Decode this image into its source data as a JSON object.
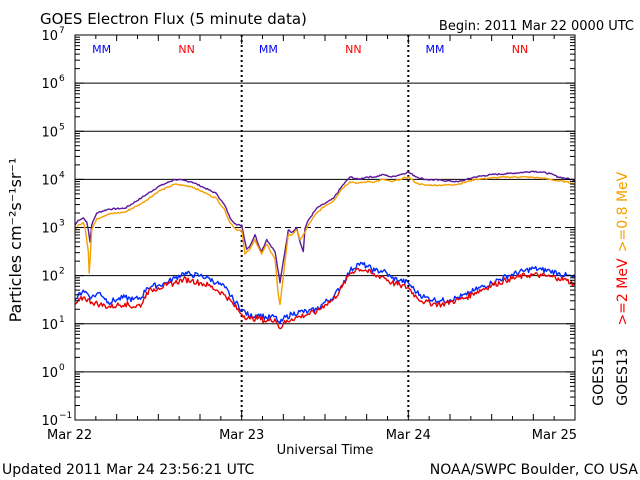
{
  "chart_data": {
    "type": "line",
    "title": "GOES Electron Flux (5 minute data)",
    "begin_text": "Begin: 2011 Mar 22 0000 UTC",
    "xlabel": "Universal Time",
    "ylabel": "Particles cm⁻²s⁻¹sr⁻¹",
    "yscale": "log",
    "ylim_exp": [
      -1,
      7
    ],
    "xlim_days": [
      0,
      3
    ],
    "x_tick_labels": [
      "Mar 22",
      "Mar 23",
      "Mar 24",
      "Mar 25"
    ],
    "y_tick_labels": [
      {
        "base": "10",
        "exp": "7"
      },
      {
        "base": "10",
        "exp": "6"
      },
      {
        "base": "10",
        "exp": "5"
      },
      {
        "base": "10",
        "exp": "4"
      },
      {
        "base": "10",
        "exp": "3"
      },
      {
        "base": "10",
        "exp": "2"
      },
      {
        "base": "10",
        "exp": "1"
      },
      {
        "base": "10",
        "exp": "0"
      },
      {
        "base": "10",
        "exp": "−1"
      }
    ],
    "dashed_levels_exp": [
      3
    ],
    "solid_grid_levels_exp": [
      0,
      1,
      2,
      4,
      5,
      6
    ],
    "noon_markers_days": [
      0.5,
      1.5,
      2.5
    ],
    "midnight_markers_days": [
      1,
      2
    ],
    "marker_glyphs": [
      "M",
      "N"
    ],
    "right_labels": {
      "ge08": ">=0.8 MeV",
      "ge2": ">=2 MeV",
      "sat_top": "GOES15",
      "sat_bottom": "GOES13"
    },
    "colors": {
      "goes15_ge08": "#5a1a9a",
      "goes13_ge08": "#f5a000",
      "goes15_ge2": "#0028ff",
      "goes13_ge2": "#e80000",
      "marker_m": "#0000ff",
      "marker_n": "#ff0000",
      "ge08_label": "#f5a000",
      "ge2_label": "#ff0000"
    },
    "series": [
      {
        "name": "GOES15 >=0.8 MeV",
        "color_key": "goes15_ge08",
        "points": [
          [
            0.0,
            3.05
          ],
          [
            0.02,
            3.15
          ],
          [
            0.05,
            3.2
          ],
          [
            0.07,
            3.12
          ],
          [
            0.08,
            2.95
          ],
          [
            0.09,
            2.7
          ],
          [
            0.1,
            3.05
          ],
          [
            0.13,
            3.3
          ],
          [
            0.2,
            3.38
          ],
          [
            0.3,
            3.4
          ],
          [
            0.4,
            3.62
          ],
          [
            0.5,
            3.85
          ],
          [
            0.6,
            4.0
          ],
          [
            0.7,
            3.95
          ],
          [
            0.78,
            3.82
          ],
          [
            0.85,
            3.7
          ],
          [
            0.9,
            3.45
          ],
          [
            0.93,
            3.2
          ],
          [
            0.97,
            3.05
          ],
          [
            1.0,
            3.05
          ],
          [
            1.03,
            2.55
          ],
          [
            1.05,
            2.62
          ],
          [
            1.08,
            2.85
          ],
          [
            1.1,
            2.65
          ],
          [
            1.12,
            2.5
          ],
          [
            1.15,
            2.75
          ],
          [
            1.2,
            2.5
          ],
          [
            1.23,
            1.85
          ],
          [
            1.25,
            2.3
          ],
          [
            1.28,
            2.95
          ],
          [
            1.3,
            2.9
          ],
          [
            1.33,
            3.0
          ],
          [
            1.35,
            2.7
          ],
          [
            1.37,
            2.5
          ],
          [
            1.38,
            2.98
          ],
          [
            1.4,
            3.15
          ],
          [
            1.45,
            3.4
          ],
          [
            1.5,
            3.5
          ],
          [
            1.55,
            3.6
          ],
          [
            1.6,
            3.85
          ],
          [
            1.65,
            4.05
          ],
          [
            1.7,
            4.0
          ],
          [
            1.75,
            4.05
          ],
          [
            1.8,
            4.05
          ],
          [
            1.85,
            4.1
          ],
          [
            1.9,
            4.05
          ],
          [
            1.95,
            4.1
          ],
          [
            2.0,
            4.15
          ],
          [
            2.05,
            4.05
          ],
          [
            2.1,
            4.0
          ],
          [
            2.2,
            3.98
          ],
          [
            2.3,
            3.95
          ],
          [
            2.35,
            4.0
          ],
          [
            2.4,
            4.05
          ],
          [
            2.5,
            4.1
          ],
          [
            2.6,
            4.12
          ],
          [
            2.7,
            4.15
          ],
          [
            2.75,
            4.17
          ],
          [
            2.8,
            4.15
          ],
          [
            2.85,
            4.12
          ],
          [
            2.9,
            4.05
          ],
          [
            2.95,
            4.02
          ],
          [
            3.0,
            3.98
          ]
        ]
      },
      {
        "name": "GOES13 >=0.8 MeV",
        "color_key": "goes13_ge08",
        "points": [
          [
            0.0,
            2.95
          ],
          [
            0.02,
            3.05
          ],
          [
            0.05,
            3.1
          ],
          [
            0.06,
            3.0
          ],
          [
            0.08,
            2.5
          ],
          [
            0.085,
            2.05
          ],
          [
            0.09,
            2.3
          ],
          [
            0.1,
            2.95
          ],
          [
            0.13,
            3.18
          ],
          [
            0.2,
            3.28
          ],
          [
            0.3,
            3.32
          ],
          [
            0.4,
            3.5
          ],
          [
            0.5,
            3.75
          ],
          [
            0.6,
            3.9
          ],
          [
            0.7,
            3.85
          ],
          [
            0.78,
            3.72
          ],
          [
            0.85,
            3.6
          ],
          [
            0.9,
            3.35
          ],
          [
            0.93,
            3.1
          ],
          [
            0.97,
            2.95
          ],
          [
            1.0,
            2.95
          ],
          [
            1.02,
            2.45
          ],
          [
            1.05,
            2.55
          ],
          [
            1.08,
            2.75
          ],
          [
            1.1,
            2.6
          ],
          [
            1.12,
            2.45
          ],
          [
            1.15,
            2.65
          ],
          [
            1.2,
            2.35
          ],
          [
            1.22,
            1.6
          ],
          [
            1.23,
            1.4
          ],
          [
            1.24,
            1.7
          ],
          [
            1.26,
            2.3
          ],
          [
            1.28,
            2.85
          ],
          [
            1.3,
            2.85
          ],
          [
            1.33,
            2.95
          ],
          [
            1.35,
            2.75
          ],
          [
            1.38,
            2.9
          ],
          [
            1.4,
            3.05
          ],
          [
            1.45,
            3.3
          ],
          [
            1.5,
            3.45
          ],
          [
            1.55,
            3.55
          ],
          [
            1.6,
            3.8
          ],
          [
            1.65,
            3.95
          ],
          [
            1.7,
            3.92
          ],
          [
            1.75,
            3.95
          ],
          [
            1.8,
            3.95
          ],
          [
            1.85,
            4.0
          ],
          [
            1.9,
            3.95
          ],
          [
            1.95,
            4.0
          ],
          [
            2.0,
            4.05
          ],
          [
            2.05,
            3.92
          ],
          [
            2.1,
            3.88
          ],
          [
            2.2,
            3.88
          ],
          [
            2.3,
            3.9
          ],
          [
            2.35,
            3.95
          ],
          [
            2.4,
            4.0
          ],
          [
            2.5,
            4.03
          ],
          [
            2.6,
            4.05
          ],
          [
            2.7,
            4.05
          ],
          [
            2.8,
            4.03
          ],
          [
            2.85,
            4.0
          ],
          [
            2.9,
            3.97
          ],
          [
            2.95,
            3.95
          ],
          [
            3.0,
            3.9
          ]
        ]
      },
      {
        "name": "GOES15 >=2 MeV",
        "color_key": "goes15_ge2",
        "points": [
          [
            0.0,
            1.5
          ],
          [
            0.05,
            1.7
          ],
          [
            0.1,
            1.55
          ],
          [
            0.15,
            1.65
          ],
          [
            0.2,
            1.45
          ],
          [
            0.25,
            1.5
          ],
          [
            0.3,
            1.55
          ],
          [
            0.35,
            1.5
          ],
          [
            0.4,
            1.55
          ],
          [
            0.43,
            1.75
          ],
          [
            0.46,
            1.78
          ],
          [
            0.5,
            1.8
          ],
          [
            0.55,
            1.85
          ],
          [
            0.6,
            1.95
          ],
          [
            0.65,
            2.05
          ],
          [
            0.7,
            2.02
          ],
          [
            0.75,
            2.0
          ],
          [
            0.8,
            1.95
          ],
          [
            0.85,
            1.85
          ],
          [
            0.9,
            1.75
          ],
          [
            0.95,
            1.5
          ],
          [
            1.0,
            1.3
          ],
          [
            1.05,
            1.15
          ],
          [
            1.1,
            1.2
          ],
          [
            1.15,
            1.12
          ],
          [
            1.2,
            1.15
          ],
          [
            1.23,
            1.0
          ],
          [
            1.25,
            1.1
          ],
          [
            1.3,
            1.2
          ],
          [
            1.35,
            1.25
          ],
          [
            1.4,
            1.25
          ],
          [
            1.45,
            1.3
          ],
          [
            1.5,
            1.45
          ],
          [
            1.55,
            1.55
          ],
          [
            1.6,
            1.8
          ],
          [
            1.65,
            2.1
          ],
          [
            1.7,
            2.25
          ],
          [
            1.75,
            2.2
          ],
          [
            1.8,
            2.1
          ],
          [
            1.85,
            2.1
          ],
          [
            1.9,
            1.95
          ],
          [
            1.95,
            1.9
          ],
          [
            2.0,
            1.85
          ],
          [
            2.05,
            1.65
          ],
          [
            2.1,
            1.55
          ],
          [
            2.15,
            1.5
          ],
          [
            2.2,
            1.48
          ],
          [
            2.25,
            1.5
          ],
          [
            2.3,
            1.55
          ],
          [
            2.35,
            1.6
          ],
          [
            2.4,
            1.7
          ],
          [
            2.5,
            1.85
          ],
          [
            2.6,
            2.0
          ],
          [
            2.7,
            2.1
          ],
          [
            2.75,
            2.15
          ],
          [
            2.8,
            2.12
          ],
          [
            2.85,
            2.1
          ],
          [
            2.9,
            2.05
          ],
          [
            2.95,
            2.0
          ],
          [
            3.0,
            1.95
          ]
        ]
      },
      {
        "name": "GOES13 >=2 MeV",
        "color_key": "goes13_ge2",
        "points": [
          [
            0.0,
            1.4
          ],
          [
            0.05,
            1.55
          ],
          [
            0.1,
            1.45
          ],
          [
            0.15,
            1.4
          ],
          [
            0.2,
            1.35
          ],
          [
            0.25,
            1.38
          ],
          [
            0.3,
            1.42
          ],
          [
            0.35,
            1.35
          ],
          [
            0.4,
            1.4
          ],
          [
            0.43,
            1.65
          ],
          [
            0.46,
            1.7
          ],
          [
            0.5,
            1.75
          ],
          [
            0.55,
            1.8
          ],
          [
            0.6,
            1.85
          ],
          [
            0.65,
            1.92
          ],
          [
            0.7,
            1.9
          ],
          [
            0.75,
            1.85
          ],
          [
            0.8,
            1.8
          ],
          [
            0.85,
            1.7
          ],
          [
            0.9,
            1.6
          ],
          [
            0.95,
            1.4
          ],
          [
            1.0,
            1.2
          ],
          [
            1.05,
            1.1
          ],
          [
            1.1,
            1.12
          ],
          [
            1.15,
            1.05
          ],
          [
            1.2,
            1.1
          ],
          [
            1.23,
            0.9
          ],
          [
            1.25,
            1.0
          ],
          [
            1.3,
            1.1
          ],
          [
            1.35,
            1.15
          ],
          [
            1.4,
            1.2
          ],
          [
            1.45,
            1.25
          ],
          [
            1.5,
            1.4
          ],
          [
            1.55,
            1.5
          ],
          [
            1.6,
            1.75
          ],
          [
            1.65,
            2.05
          ],
          [
            1.7,
            2.15
          ],
          [
            1.75,
            2.1
          ],
          [
            1.8,
            2.0
          ],
          [
            1.85,
            1.98
          ],
          [
            1.9,
            1.85
          ],
          [
            1.95,
            1.8
          ],
          [
            2.0,
            1.75
          ],
          [
            2.05,
            1.55
          ],
          [
            2.1,
            1.45
          ],
          [
            2.15,
            1.42
          ],
          [
            2.2,
            1.4
          ],
          [
            2.25,
            1.45
          ],
          [
            2.3,
            1.5
          ],
          [
            2.35,
            1.55
          ],
          [
            2.4,
            1.65
          ],
          [
            2.5,
            1.8
          ],
          [
            2.6,
            1.92
          ],
          [
            2.7,
            2.0
          ],
          [
            2.75,
            2.02
          ],
          [
            2.8,
            2.0
          ],
          [
            2.85,
            1.98
          ],
          [
            2.9,
            1.95
          ],
          [
            2.95,
            1.9
          ],
          [
            3.0,
            1.82
          ]
        ]
      }
    ]
  },
  "footer": {
    "updated": "Updated 2011 Mar 24 23:56:21 UTC",
    "source": "NOAA/SWPC Boulder, CO USA"
  }
}
